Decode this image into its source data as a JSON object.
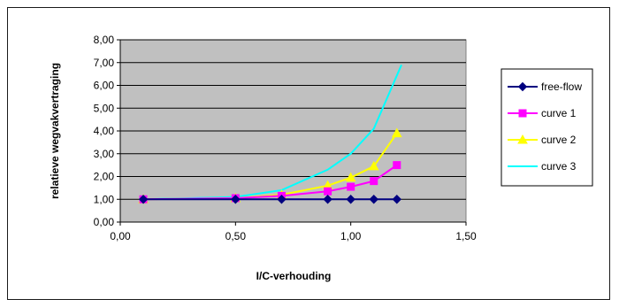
{
  "chart_data": {
    "type": "line",
    "xlabel": "I/C-verhouding",
    "ylabel": "relatieve wegvakvertraging",
    "xlim": [
      0,
      1.5
    ],
    "ylim": [
      0,
      8
    ],
    "xticks": [
      0,
      0.5,
      1.0,
      1.5
    ],
    "xtick_labels": [
      "0,00",
      "0,50",
      "1,00",
      "1,50"
    ],
    "yticks": [
      0,
      1,
      2,
      3,
      4,
      5,
      6,
      7,
      8
    ],
    "ytick_labels": [
      "0,00",
      "1,00",
      "2,00",
      "3,00",
      "4,00",
      "5,00",
      "6,00",
      "7,00",
      "8,00"
    ],
    "grid": "horizontal",
    "plot_background": "#c0c0c0",
    "legend_position": "right",
    "series": [
      {
        "name": "free-flow",
        "color": "#000080",
        "marker": "diamond",
        "x": [
          0.1,
          0.5,
          0.7,
          0.9,
          1.0,
          1.1,
          1.2
        ],
        "y": [
          1.0,
          1.0,
          1.0,
          1.0,
          1.0,
          1.0,
          1.0
        ]
      },
      {
        "name": "curve 1",
        "color": "#ff00ff",
        "marker": "square",
        "x": [
          0.1,
          0.5,
          0.7,
          0.9,
          1.0,
          1.1,
          1.2
        ],
        "y": [
          1.0,
          1.05,
          1.15,
          1.35,
          1.55,
          1.8,
          2.5
        ]
      },
      {
        "name": "curve 2",
        "color": "#ffff00",
        "marker": "triangle",
        "x": [
          0.1,
          0.5,
          0.7,
          0.9,
          1.0,
          1.1,
          1.2
        ],
        "y": [
          1.0,
          1.05,
          1.2,
          1.6,
          1.95,
          2.45,
          3.9
        ]
      },
      {
        "name": "curve 3",
        "color": "#00ffff",
        "marker": "none",
        "x": [
          0.1,
          0.5,
          0.7,
          0.9,
          1.0,
          1.1,
          1.22
        ],
        "y": [
          1.0,
          1.1,
          1.4,
          2.3,
          3.0,
          4.1,
          6.9
        ]
      }
    ]
  }
}
